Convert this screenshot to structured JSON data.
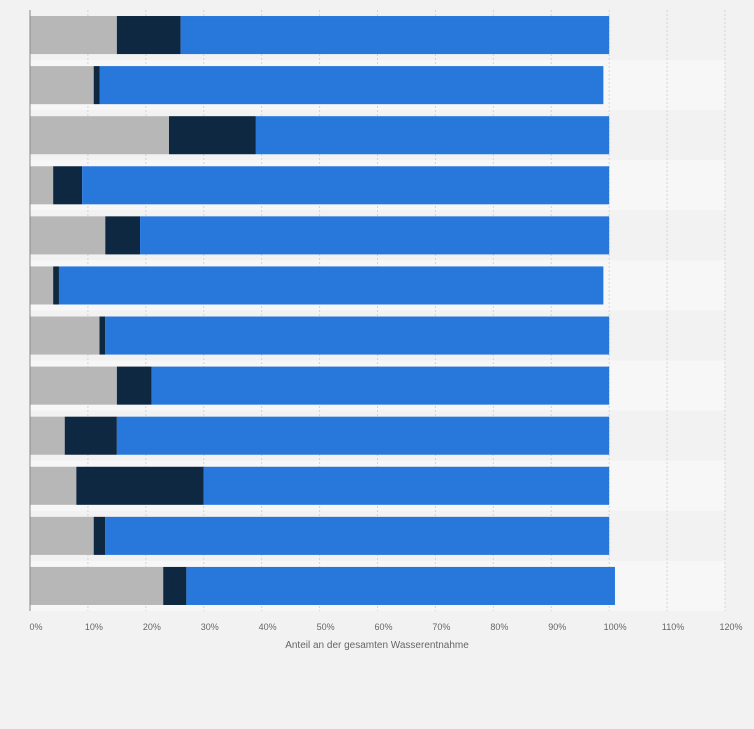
{
  "chart_data": {
    "type": "bar",
    "orientation": "horizontal",
    "stacked": true,
    "xlabel": "Anteil an der gesamten Wasserentnahme",
    "ylabel": "",
    "xlim": [
      0,
      120
    ],
    "x_ticks": [
      "0%",
      "10%",
      "20%",
      "30%",
      "40%",
      "50%",
      "60%",
      "70%",
      "80%",
      "90%",
      "100%",
      "110%",
      "120%"
    ],
    "categories": [
      "",
      "",
      "",
      "",
      "",
      "",
      "",
      "",
      "",
      "",
      "",
      ""
    ],
    "grid": true,
    "series": [
      {
        "color": "#b7b7b7",
        "values": [
          15,
          11,
          24,
          4,
          13,
          4,
          12,
          15,
          6,
          8,
          11,
          23
        ]
      },
      {
        "color": "#0e2841",
        "values": [
          11,
          1,
          15,
          5,
          6,
          1,
          1,
          6,
          9,
          22,
          2,
          4
        ]
      },
      {
        "color": "#2878dc",
        "values": [
          74,
          87,
          61,
          91,
          81,
          94,
          87,
          79,
          85,
          70,
          87,
          74
        ]
      }
    ]
  }
}
